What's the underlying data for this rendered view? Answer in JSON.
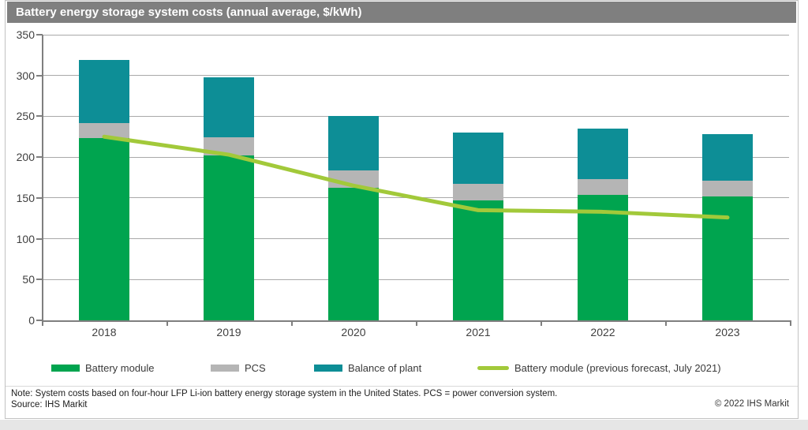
{
  "title": "Battery energy storage system costs (annual average, $/kWh)",
  "chart_data": {
    "type": "bar",
    "stacked": true,
    "title": "Battery energy storage system costs (annual average, $/kWh)",
    "categories": [
      "2018",
      "2019",
      "2020",
      "2021",
      "2022",
      "2023"
    ],
    "series": [
      {
        "name": "Battery module",
        "color": "#00A44F",
        "values": [
          223,
          202,
          162,
          147,
          154,
          152
        ]
      },
      {
        "name": "PCS",
        "color": "#B5B5B5",
        "values": [
          19,
          22,
          22,
          20,
          19,
          19
        ]
      },
      {
        "name": "Balance of plant",
        "color": "#0D8E96",
        "values": [
          77,
          74,
          66,
          63,
          62,
          57
        ]
      }
    ],
    "stack_totals": [
      319,
      298,
      250,
      230,
      235,
      228
    ],
    "line_series": {
      "name": "Battery module (previous forecast, July 2021)",
      "color": "#A2C93A",
      "values": [
        225,
        203,
        165,
        135,
        133,
        126
      ]
    },
    "ylim": [
      0,
      350
    ],
    "yticks": [
      350,
      300,
      250,
      200,
      150,
      100,
      50,
      0
    ],
    "grid": true,
    "legend_position": "bottom"
  },
  "colors": {
    "title_bar": "#7f7f7f",
    "gridline": "#a9a9a9",
    "axis": "#7f7f7f",
    "tick_label": "#3f3f3f"
  },
  "footer": {
    "note": "Note: System costs based on four-hour LFP Li-ion battery energy storage system in the United States. PCS = power conversion system.",
    "source": "Source: IHS Markit",
    "copyright": "© 2022 IHS Markit"
  }
}
